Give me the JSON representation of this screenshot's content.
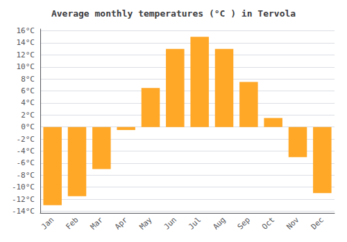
{
  "chart_data": {
    "type": "bar",
    "title": "Average monthly temperatures (°C ) in Tervola",
    "categories": [
      "Jan",
      "Feb",
      "Mar",
      "Apr",
      "May",
      "Jun",
      "Jul",
      "Aug",
      "Sep",
      "Oct",
      "Nov",
      "Dec"
    ],
    "values": [
      -13.0,
      -11.5,
      -7.0,
      -0.5,
      6.5,
      13.0,
      15.0,
      13.0,
      7.5,
      1.5,
      -5.0,
      -11.0
    ],
    "color": "#FFA726",
    "ylim": [
      -14.3,
      16.3
    ],
    "yticks": [
      {
        "value": -14,
        "label": "-14°C"
      },
      {
        "value": -12,
        "label": "-12°C"
      },
      {
        "value": -10,
        "label": "-10°C"
      },
      {
        "value": -8,
        "label": "-8°C"
      },
      {
        "value": -6,
        "label": "-6°C"
      },
      {
        "value": -4,
        "label": "-4°C"
      },
      {
        "value": -2,
        "label": "-2°C"
      },
      {
        "value": 0,
        "label": "0°C"
      },
      {
        "value": 2,
        "label": "2°C"
      },
      {
        "value": 4,
        "label": "4°C"
      },
      {
        "value": 6,
        "label": "6°C"
      },
      {
        "value": 8,
        "label": "8°C"
      },
      {
        "value": 10,
        "label": "10°C"
      },
      {
        "value": 12,
        "label": "12°C"
      },
      {
        "value": 14,
        "label": "14°C"
      },
      {
        "value": 16,
        "label": "16°C"
      }
    ],
    "grid": true
  }
}
